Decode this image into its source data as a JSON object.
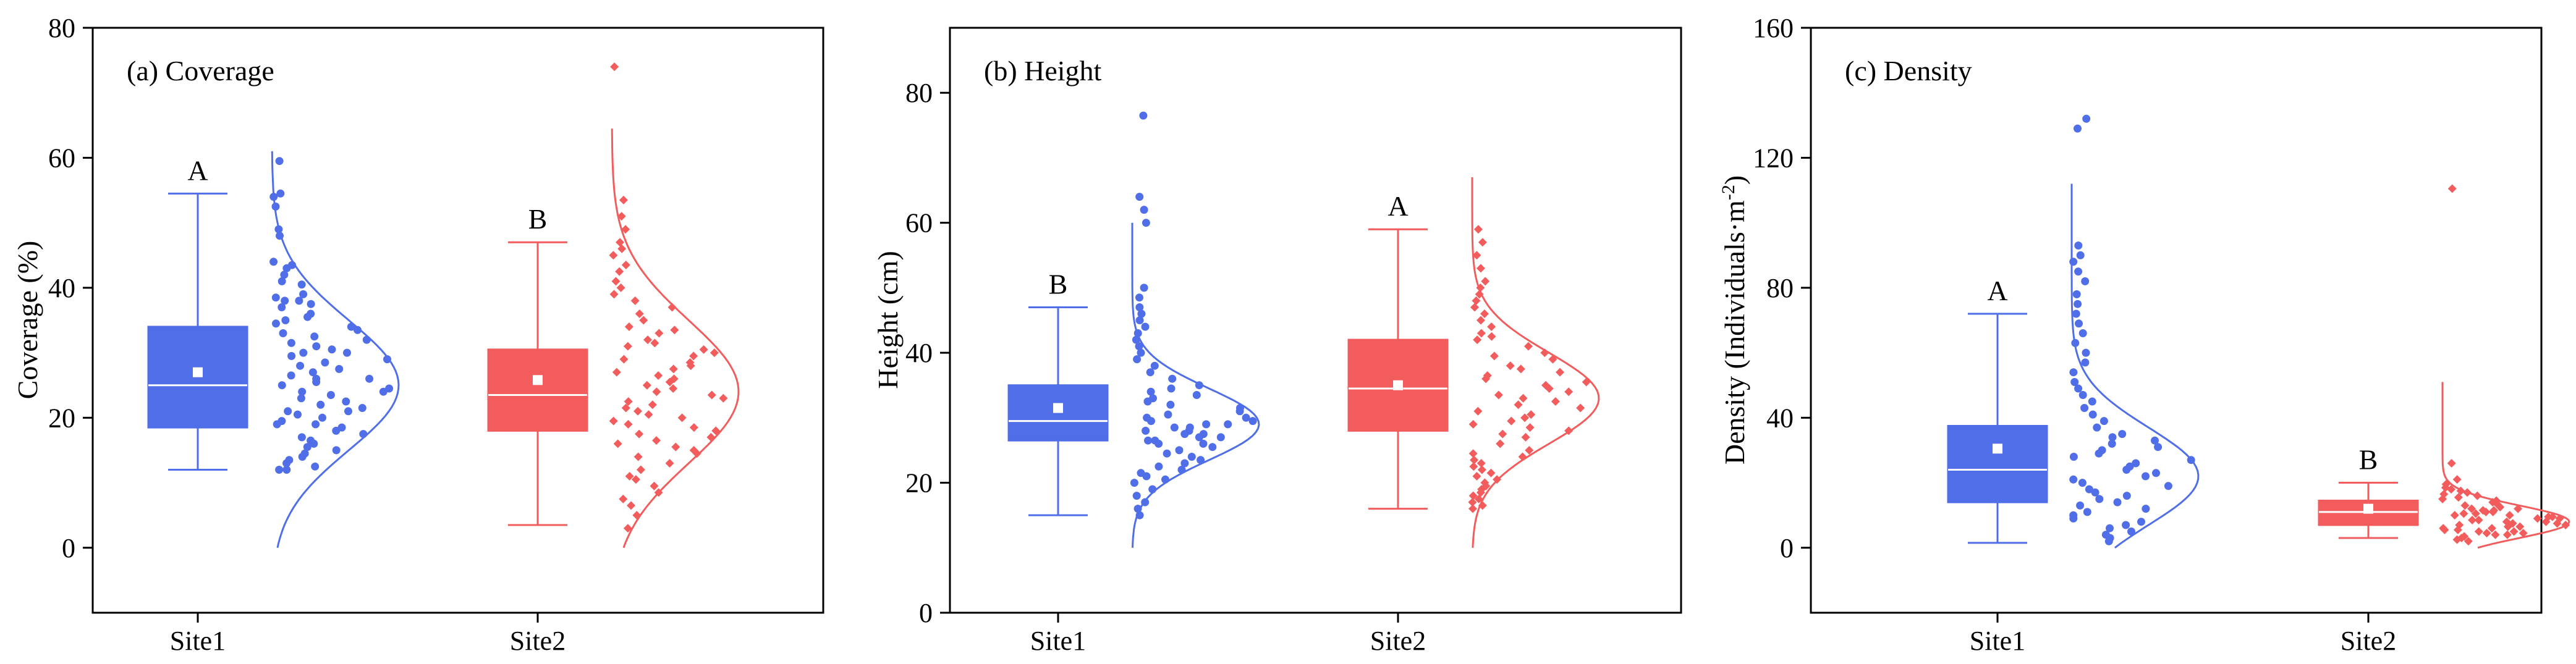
{
  "colors": {
    "site1": "#4F6EE8",
    "site2": "#F25C5C",
    "mean_marker": "#FFFFFF"
  },
  "chart_data": [
    {
      "type": "box-scatter-density",
      "title": "(a) Coverage",
      "xlabel": "",
      "ylabel": "Coverage (%)",
      "ylim": [
        -10,
        80
      ],
      "yticks": [
        0,
        20,
        40,
        60,
        80
      ],
      "categories": [
        "Site1",
        "Site2"
      ],
      "series": [
        {
          "name": "Site1",
          "letter": "A",
          "box": {
            "min": 12,
            "q1": 18.5,
            "median": 25,
            "q3": 34,
            "max": 54.5,
            "mean": 27
          },
          "curve": {
            "center": 25,
            "sd": 10,
            "amp": 0.6,
            "ymin": 0,
            "ymax": 61
          },
          "points": [
            59.5,
            54.5,
            54,
            52.5,
            49,
            48,
            44,
            43.5,
            43,
            42,
            41,
            40.5,
            39,
            38.5,
            38,
            38,
            37.5,
            37,
            36,
            35.5,
            35,
            34.5,
            34,
            33.5,
            33,
            32.5,
            32,
            31.5,
            31,
            30.5,
            30,
            30,
            29.5,
            29,
            28.5,
            28,
            27.5,
            27,
            26.5,
            26,
            26,
            25.5,
            25,
            24.5,
            24,
            24,
            23.5,
            23,
            22.5,
            22,
            21.5,
            21,
            21,
            20.5,
            20,
            19.5,
            19,
            19,
            18.5,
            18,
            17.5,
            17,
            16.5,
            16,
            15.5,
            15,
            14.5,
            14,
            13.5,
            13,
            12.5,
            12,
            12
          ]
        },
        {
          "name": "Site2",
          "letter": "B",
          "box": {
            "min": 3.5,
            "q1": 18,
            "median": 23.5,
            "q3": 30.5,
            "max": 47,
            "mean": 25.8
          },
          "curve": {
            "center": 24,
            "sd": 11,
            "amp": 0.6,
            "ymin": 0,
            "ymax": 64.5
          },
          "points": [
            74,
            53.5,
            51,
            49,
            47,
            46,
            45,
            43.5,
            42.5,
            41,
            40,
            39,
            38,
            37,
            36,
            35,
            34,
            33.5,
            33,
            32,
            31.5,
            31,
            30.5,
            30,
            29.5,
            29,
            28.5,
            28,
            27.5,
            27,
            26.5,
            26,
            25.5,
            25,
            24.5,
            24,
            23.5,
            23,
            22.5,
            22,
            21.5,
            21,
            20.5,
            20,
            19.5,
            19,
            18.5,
            18,
            17.5,
            17,
            16.5,
            16,
            15.5,
            15,
            14.5,
            14,
            13,
            12,
            11,
            10.5,
            9.5,
            8.5,
            7.5,
            6.5,
            5,
            3
          ]
        }
      ]
    },
    {
      "type": "box-scatter-density",
      "title": "(b) Height",
      "xlabel": "",
      "ylabel": "Height (cm)",
      "ylim": [
        0,
        90
      ],
      "yticks": [
        0,
        20,
        40,
        60,
        80
      ],
      "categories": [
        "Site1",
        "Site2"
      ],
      "series": [
        {
          "name": "Site1",
          "letter": "B",
          "box": {
            "min": 15,
            "q1": 26.5,
            "median": 29.5,
            "q3": 35,
            "max": 47,
            "mean": 31.5
          },
          "curve": {
            "center": 29,
            "sd": 5.5,
            "amp": 0.6,
            "ymin": 10,
            "ymax": 60
          },
          "points": [
            76.5,
            64,
            62,
            60,
            50,
            48.5,
            47,
            46,
            45,
            44,
            43,
            42,
            41,
            40,
            39,
            38,
            37,
            36,
            35,
            34.5,
            34,
            33.5,
            33,
            32.5,
            32,
            31.5,
            31,
            30.5,
            30,
            30,
            29.5,
            29.5,
            29,
            29,
            28.5,
            28.5,
            28,
            28,
            27.5,
            27.5,
            27,
            27,
            26.5,
            26.5,
            26,
            26,
            25.5,
            25,
            24.5,
            24,
            23.5,
            23,
            22.5,
            22,
            21.5,
            21,
            20.5,
            20,
            19,
            18,
            17,
            16,
            15
          ]
        },
        {
          "name": "Site2",
          "letter": "A",
          "box": {
            "min": 16,
            "q1": 28,
            "median": 34.5,
            "q3": 42,
            "max": 59,
            "mean": 35
          },
          "curve": {
            "center": 33,
            "sd": 7,
            "amp": 0.6,
            "ymin": 10,
            "ymax": 67
          },
          "points": [
            59,
            57,
            55,
            53,
            51,
            50,
            49,
            48,
            47,
            46,
            45,
            44,
            43,
            42.5,
            42,
            41,
            40,
            39.5,
            39,
            38,
            37.5,
            37,
            36.5,
            36,
            35.5,
            35,
            34.5,
            34,
            33.5,
            33,
            32.5,
            32,
            31.5,
            31,
            30.5,
            30,
            29.5,
            29,
            28.5,
            28,
            27.5,
            27,
            26,
            25,
            24.5,
            24,
            23.5,
            23,
            22.5,
            22,
            21.5,
            21,
            20.5,
            20,
            19.5,
            19,
            18.5,
            18,
            17.5,
            17,
            16.5,
            16
          ]
        }
      ]
    },
    {
      "type": "box-scatter-density",
      "title": "(c) Density",
      "xlabel": "",
      "ylabel": "Density (Individuals·m",
      "ylabel_sup": "-2",
      "ylabel_end": ")",
      "ylim": [
        -20,
        160
      ],
      "yticks": [
        0,
        40,
        80,
        120,
        160
      ],
      "categories": [
        "Site1",
        "Site2"
      ],
      "series": [
        {
          "name": "Site1",
          "letter": "A",
          "box": {
            "min": 1.5,
            "q1": 14,
            "median": 24,
            "q3": 37.5,
            "max": 72,
            "mean": 30.5
          },
          "curve": {
            "center": 22,
            "sd": 15,
            "amp": 0.6,
            "ymin": 0,
            "ymax": 112
          },
          "points": [
            132,
            129,
            93,
            90,
            88,
            85,
            82,
            78,
            75,
            72,
            69,
            66,
            63,
            60,
            57,
            54,
            51,
            49,
            47,
            45,
            43,
            41,
            39,
            37,
            35,
            34,
            33,
            32,
            31,
            30,
            29,
            28,
            27,
            26,
            25,
            24,
            23,
            22,
            21,
            20,
            19,
            18,
            17,
            16,
            15,
            14,
            13,
            12,
            11,
            10,
            9,
            8,
            7,
            6,
            5,
            4,
            3,
            2
          ]
        },
        {
          "name": "Site2",
          "letter": "B",
          "box": {
            "min": 3,
            "q1": 7,
            "median": 11,
            "q3": 14.5,
            "max": 20,
            "mean": 12
          },
          "curve": {
            "center": 8,
            "sd": 5,
            "amp": 0.6,
            "ymin": 0,
            "ymax": 51
          },
          "points": [
            110.5,
            26,
            21,
            19.5,
            18.5,
            18,
            17.5,
            17,
            16.5,
            16,
            15.5,
            15,
            14.5,
            14,
            13.5,
            13,
            12.5,
            12,
            12,
            11.5,
            11.5,
            11,
            11,
            10.5,
            10.5,
            10,
            10,
            9.5,
            9.5,
            9,
            9,
            8.5,
            8.5,
            8,
            8,
            7.5,
            7.5,
            7,
            7,
            6.5,
            6.5,
            6,
            6,
            5.5,
            5.5,
            5,
            5,
            4.5,
            4.5,
            4,
            4,
            3.5,
            3,
            2.5,
            2
          ]
        }
      ]
    }
  ]
}
